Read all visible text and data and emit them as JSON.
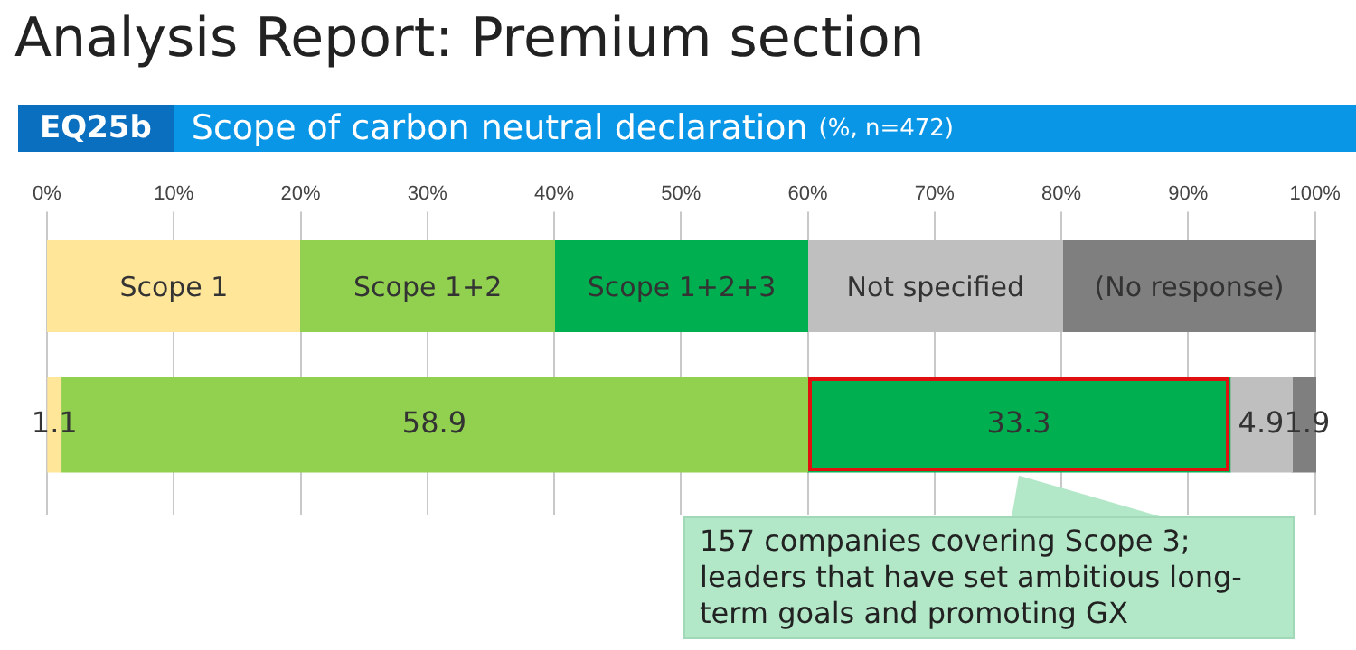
{
  "chart_data": {
    "type": "bar",
    "orientation": "horizontal",
    "stacked": true,
    "title": "Analysis Report: Premium section",
    "subtitle": "EQ25b Scope of carbon neutral declaration (%, n=472)",
    "categories": [
      null
    ],
    "series": [
      {
        "name": "Scope 1",
        "color": "#ffe699",
        "values": [
          1.1
        ]
      },
      {
        "name": "Scope 1+2",
        "color": "#92d050",
        "values": [
          58.9
        ]
      },
      {
        "name": "Scope 1+2+3",
        "color": "#00b050",
        "values": [
          33.3
        ]
      },
      {
        "name": "Not specified",
        "color": "#bfbfbf",
        "values": [
          4.9
        ]
      },
      {
        "name": "(No response)",
        "color": "#7f7f7f",
        "values": [
          1.9
        ]
      }
    ],
    "xlim": [
      0,
      100.1
    ],
    "xticks": [
      {
        "value": 0,
        "label": "0%"
      },
      {
        "value": 10,
        "label": "10%"
      },
      {
        "value": 20,
        "label": "20%"
      },
      {
        "value": 30,
        "label": "30%"
      },
      {
        "value": 40,
        "label": "40%"
      },
      {
        "value": 50,
        "label": "50%"
      },
      {
        "value": 60,
        "label": "60%"
      },
      {
        "value": 70,
        "label": "70%"
      },
      {
        "value": 80,
        "label": "80%"
      },
      {
        "value": 90,
        "label": "90%"
      },
      {
        "value": 100,
        "label": "100%"
      }
    ],
    "data_labels": true,
    "legend": "top",
    "grid": "x",
    "annotations": [
      "157 companies covering Scope 3; leaders that have set ambitious long-term goals and promoting GX"
    ]
  }
}
